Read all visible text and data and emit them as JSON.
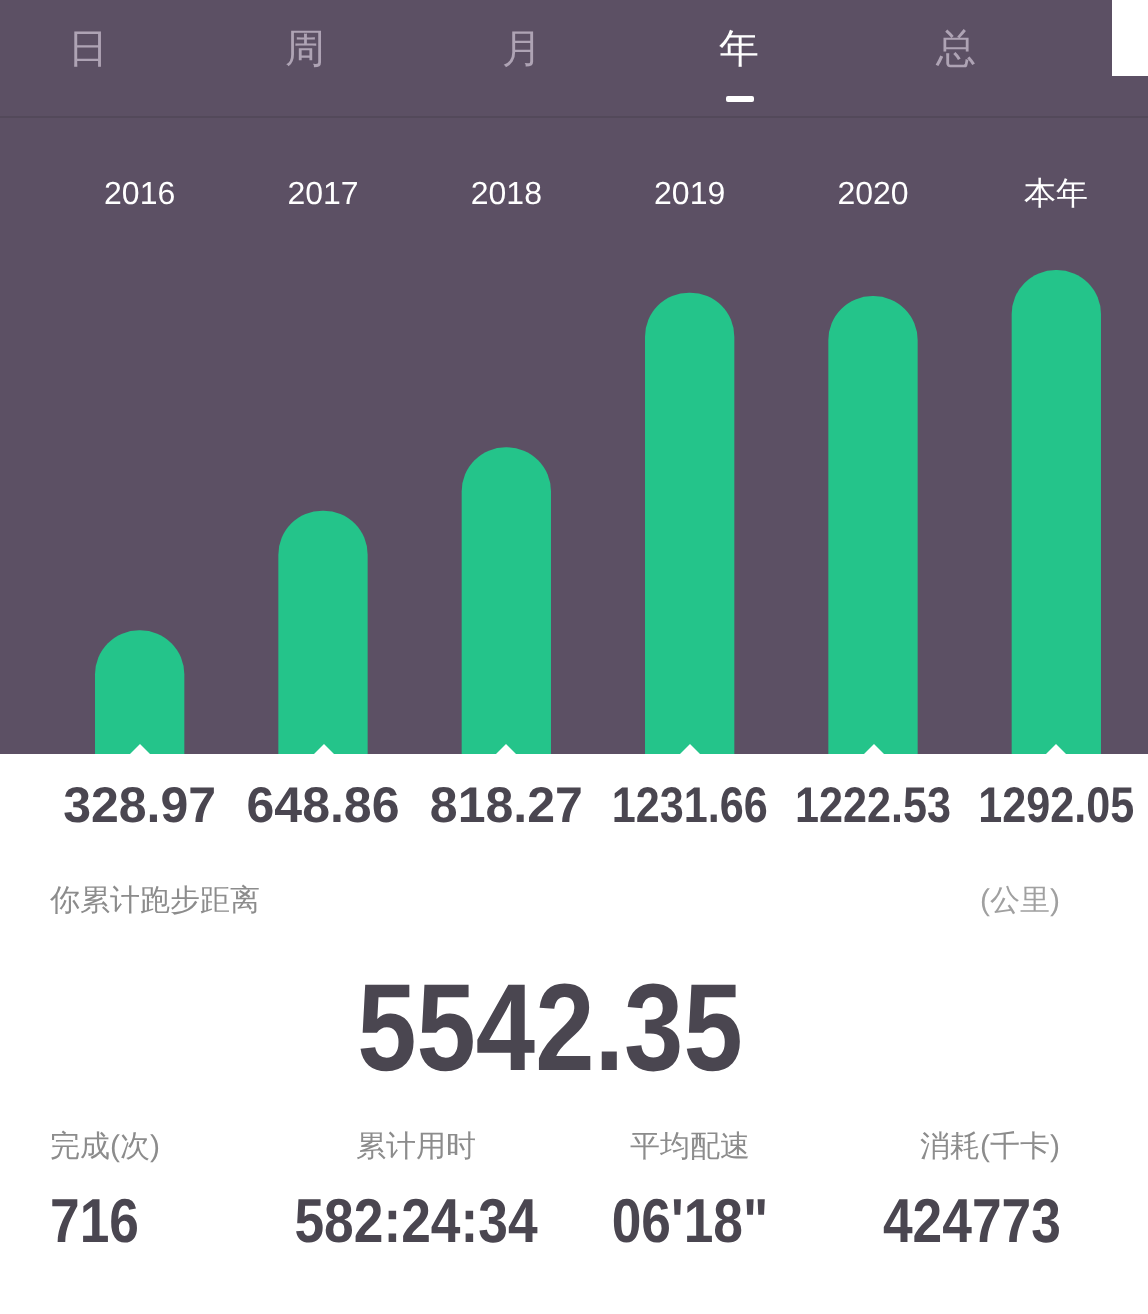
{
  "chart_data": [
    {
      "type": "other",
      "annotations": [
        "日",
        "周",
        "月",
        "年",
        "总"
      ]
    },
    {
      "type": "bar",
      "categories": [
        "2016",
        "2017",
        "2018",
        "2019",
        "2020",
        "本年"
      ],
      "values": [
        328.97,
        648.86,
        818.27,
        1231.66,
        1222.53,
        1292.05
      ],
      "color": "#24c48a",
      "data_labels": true
    },
    {
      "type": "other",
      "title": "你累计跑步距离",
      "annotations": [
        "(公里)",
        "5542.35",
        "完成(次)",
        "716",
        "累计用时",
        "582:24:34",
        "平均配速",
        "06'18\"",
        "消耗(千卡)",
        "424773"
      ]
    }
  ]
}
